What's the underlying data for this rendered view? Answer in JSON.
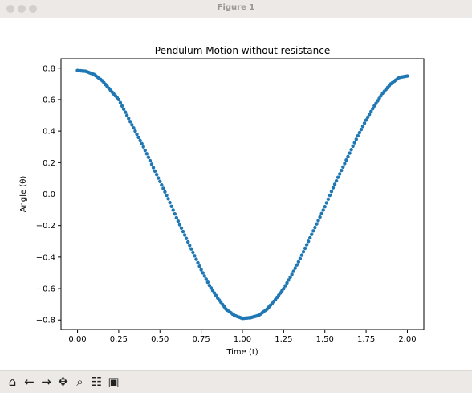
{
  "window": {
    "title": "Figure 1"
  },
  "toolbar": {
    "buttons": [
      {
        "name": "home-icon",
        "glyph": "⌂"
      },
      {
        "name": "back-icon",
        "glyph": "←"
      },
      {
        "name": "forward-icon",
        "glyph": "→"
      },
      {
        "name": "pan-icon",
        "glyph": "✥"
      },
      {
        "name": "zoom-icon",
        "glyph": "⌕"
      },
      {
        "name": "configure-subplots-icon",
        "glyph": "☷"
      },
      {
        "name": "save-icon",
        "glyph": "▣"
      }
    ]
  },
  "chart_data": {
    "type": "scatter",
    "title": "Pendulum Motion without resistance",
    "xlabel": "Time (t)",
    "ylabel": "Angle (θ)",
    "xlim": [
      -0.1,
      2.1
    ],
    "ylim": [
      -0.86,
      0.86
    ],
    "xticks": [
      "0.00",
      "0.25",
      "0.50",
      "0.75",
      "1.00",
      "1.25",
      "1.50",
      "1.75",
      "2.00"
    ],
    "xtick_values": [
      0,
      0.25,
      0.5,
      0.75,
      1.0,
      1.25,
      1.5,
      1.75,
      2.0
    ],
    "yticks": [
      "0.8",
      "0.6",
      "0.4",
      "0.2",
      "0.0",
      "−0.2",
      "−0.4",
      "−0.6",
      "−0.8"
    ],
    "ytick_values": [
      0.8,
      0.6,
      0.4,
      0.2,
      0.0,
      -0.2,
      -0.4,
      -0.6,
      -0.8
    ],
    "marker_color": "#1f77b4",
    "series": [
      {
        "x": [
          0.0,
          0.05,
          0.1,
          0.15,
          0.2,
          0.25,
          0.3,
          0.35,
          0.4,
          0.45,
          0.5,
          0.55,
          0.6,
          0.65,
          0.7,
          0.75,
          0.8,
          0.85,
          0.9,
          0.95,
          1.0,
          1.05,
          1.1,
          1.15,
          1.2,
          1.25,
          1.3,
          1.35,
          1.4,
          1.45,
          1.5,
          1.55,
          1.6,
          1.65,
          1.7,
          1.75,
          1.8,
          1.85,
          1.9,
          1.95,
          2.0
        ],
        "y": [
          0.785,
          0.78,
          0.76,
          0.72,
          0.66,
          0.6,
          0.5,
          0.4,
          0.3,
          0.19,
          0.08,
          -0.03,
          -0.15,
          -0.26,
          -0.37,
          -0.48,
          -0.58,
          -0.66,
          -0.73,
          -0.77,
          -0.79,
          -0.785,
          -0.77,
          -0.73,
          -0.67,
          -0.6,
          -0.51,
          -0.41,
          -0.3,
          -0.19,
          -0.08,
          0.04,
          0.15,
          0.26,
          0.37,
          0.47,
          0.56,
          0.64,
          0.7,
          0.74,
          0.75
        ]
      }
    ]
  }
}
